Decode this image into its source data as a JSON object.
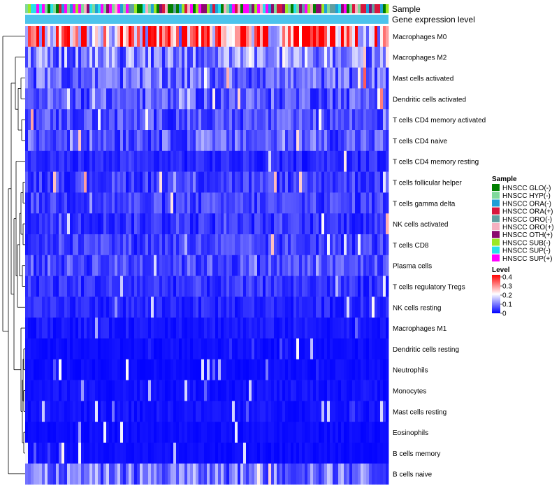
{
  "chart_data": {
    "type": "heatmap",
    "title": "",
    "annotations": {
      "sample_track_label": "Sample",
      "gene_expression_track_label": "Gene expression level",
      "gene_expression_track_color": "#4cc3ec"
    },
    "rows": [
      "Macrophages M0",
      "Macrophages M2",
      "Mast cells activated",
      "Dendritic cells activated",
      "T cells CD4 memory activated",
      "T cells CD4 naive",
      "T cells CD4 memory resting",
      "T cells follicular helper",
      "T cells gamma delta",
      "NK cells activated",
      "T cells CD8",
      "Plasma cells",
      "T cells regulatory  Tregs",
      "NK cells resting",
      "Macrophages M1",
      "Dendritic cells resting",
      "Neutrophils",
      "Monocytes",
      "Mast cells resting",
      "Eosinophils",
      "B cells memory",
      "B cells naive"
    ],
    "row_mean_levels": [
      0.28,
      0.1,
      0.08,
      0.07,
      0.06,
      0.07,
      0.03,
      0.05,
      0.05,
      0.04,
      0.05,
      0.06,
      0.04,
      0.03,
      0.02,
      0.01,
      0.01,
      0.015,
      0.015,
      0.01,
      0.01,
      0.09
    ],
    "columns_count": 130,
    "sample_legend": {
      "title": "Sample",
      "items": [
        {
          "label": "HNSCC GLO(-)",
          "color": "#007f00"
        },
        {
          "label": "HNSCC HYP(-)",
          "color": "#7fd99b"
        },
        {
          "label": "HNSCC ORA(-)",
          "color": "#1f9fd6"
        },
        {
          "label": "HNSCC ORA(+)",
          "color": "#d8163d"
        },
        {
          "label": "HNSCC ORO(-)",
          "color": "#5f9ea0"
        },
        {
          "label": "HNSCC ORO(+)",
          "color": "#f6b1c1"
        },
        {
          "label": "HNSCC OTH(+)",
          "color": "#8b0a6e"
        },
        {
          "label": "HNSCC SUB(-)",
          "color": "#9be824"
        },
        {
          "label": "HNSCC SUP(-)",
          "color": "#26e0ea"
        },
        {
          "label": "HNSCC SUP(+)",
          "color": "#ff00ff"
        }
      ]
    },
    "level_legend": {
      "title": "Level",
      "range": [
        0,
        0.4
      ],
      "ticks": [
        "0.4",
        "0.3",
        "0.2",
        "0.1",
        "0"
      ],
      "colors": [
        "#0000ff",
        "#ffffff",
        "#ff0000"
      ]
    }
  }
}
